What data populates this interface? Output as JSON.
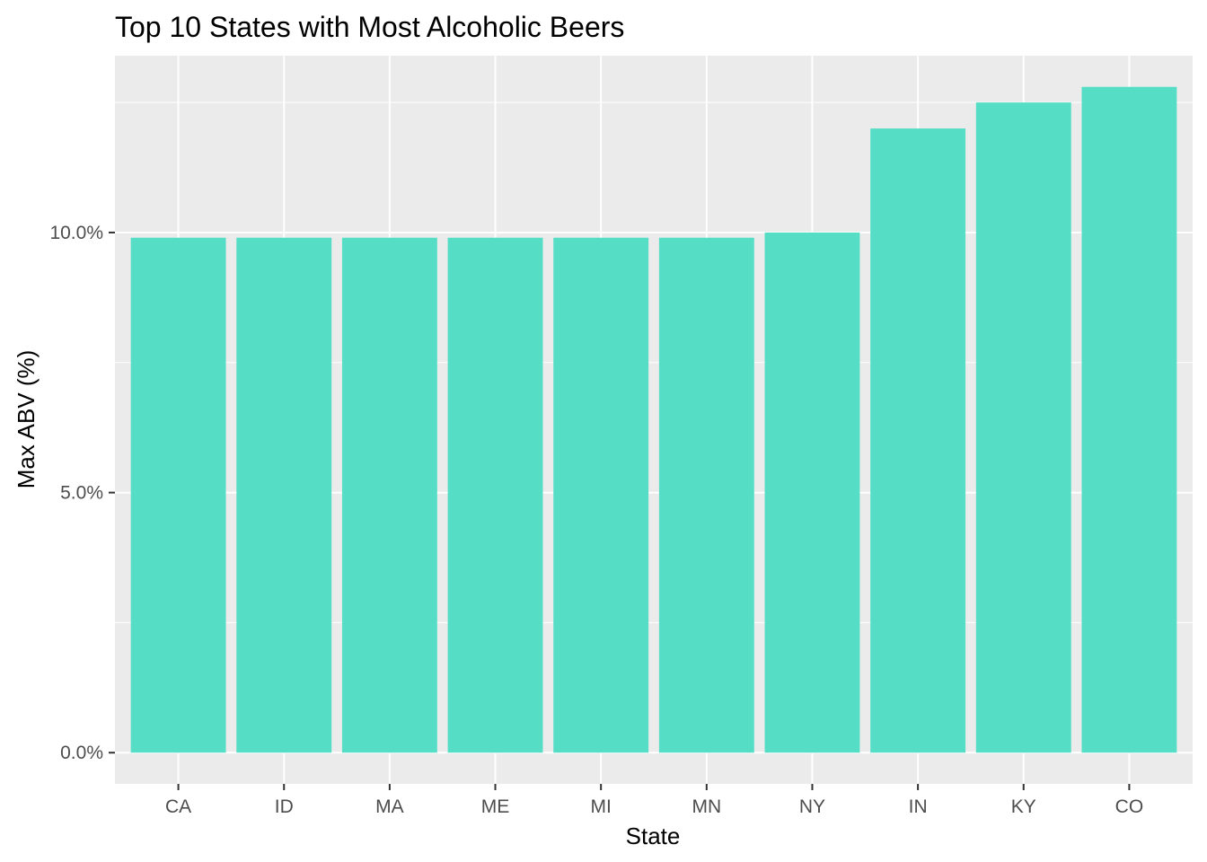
{
  "chart_data": {
    "type": "bar",
    "title": "Top 10 States with Most Alcoholic Beers",
    "xlabel": "State",
    "ylabel": "Max ABV (%)",
    "categories": [
      "CA",
      "ID",
      "MA",
      "ME",
      "MI",
      "MN",
      "NY",
      "IN",
      "KY",
      "CO"
    ],
    "values": [
      9.9,
      9.9,
      9.9,
      9.9,
      9.9,
      9.9,
      10.0,
      12.0,
      12.5,
      12.8
    ],
    "y_ticks": [
      0,
      5,
      10
    ],
    "y_tick_labels": [
      "0.0%",
      "5.0%",
      "10.0%"
    ],
    "ylim": [
      -0.6,
      13.4
    ],
    "grid": true,
    "legend": "none",
    "colors": {
      "bar": "#55DDC5",
      "panel_background": "#EBEBEB",
      "grid_line": "#FFFFFF"
    }
  }
}
